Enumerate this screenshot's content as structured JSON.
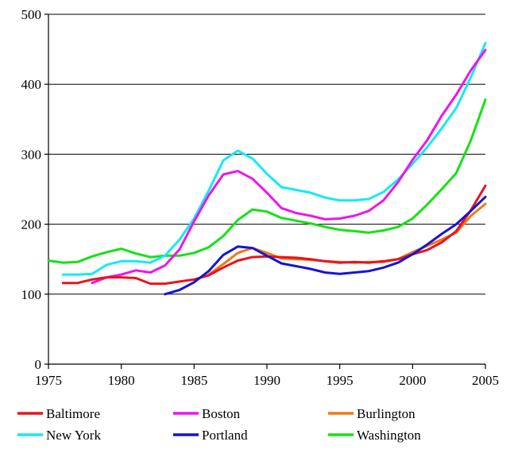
{
  "chart_data": {
    "type": "line",
    "title": "",
    "xlabel": "",
    "ylabel": "",
    "xlim": [
      1975,
      2005
    ],
    "ylim": [
      0,
      500
    ],
    "x_ticks": [
      "1975",
      "1980",
      "1985",
      "1990",
      "1995",
      "2000",
      "2005"
    ],
    "y_ticks": [
      "0",
      "100",
      "200",
      "300",
      "400",
      "500"
    ],
    "grid": "horizontal",
    "legend_position": "bottom",
    "series": [
      {
        "name": "Baltimore",
        "color": "#e8141c",
        "x": [
          1975,
          1976,
          1977,
          1978,
          1979,
          1980,
          1981,
          1982,
          1983,
          1984,
          1985,
          1986,
          1987,
          1988,
          1989,
          1990,
          1991,
          1992,
          1993,
          1994,
          1995,
          1996,
          1997,
          1998,
          1999,
          2000,
          2001,
          2002,
          2003,
          2004,
          2005
        ],
        "y": [
          null,
          116,
          116,
          121,
          124,
          124,
          123,
          115,
          115,
          118,
          121,
          127,
          138,
          148,
          153,
          154,
          153,
          152,
          150,
          147,
          145,
          146,
          145,
          147,
          150,
          157,
          163,
          174,
          190,
          220,
          255
        ]
      },
      {
        "name": "Boston",
        "color": "#ee14ee",
        "x": [
          1975,
          1976,
          1977,
          1978,
          1979,
          1980,
          1981,
          1982,
          1983,
          1984,
          1985,
          1986,
          1987,
          1988,
          1989,
          1990,
          1991,
          1992,
          1993,
          1994,
          1995,
          1996,
          1997,
          1998,
          1999,
          2000,
          2001,
          2002,
          2003,
          2004,
          2005
        ],
        "y": [
          null,
          null,
          null,
          116,
          124,
          128,
          134,
          131,
          141,
          164,
          204,
          241,
          271,
          276,
          265,
          245,
          223,
          216,
          212,
          207,
          208,
          212,
          219,
          234,
          260,
          292,
          320,
          355,
          385,
          420,
          449
        ]
      },
      {
        "name": "Burlington",
        "color": "#f07818",
        "x": [
          1975,
          1976,
          1977,
          1978,
          1979,
          1980,
          1981,
          1982,
          1983,
          1984,
          1985,
          1986,
          1987,
          1988,
          1989,
          1990,
          1991,
          1992,
          1993,
          1994,
          1995,
          1996,
          1997,
          1998,
          1999,
          2000,
          2001,
          2002,
          2003,
          2004,
          2005
        ],
        "y": [
          null,
          null,
          null,
          null,
          null,
          null,
          null,
          null,
          null,
          null,
          null,
          128,
          143,
          159,
          166,
          159,
          151,
          150,
          149,
          147,
          146,
          145,
          146,
          146,
          150,
          160,
          169,
          178,
          188,
          212,
          229
        ]
      },
      {
        "name": "New York",
        "color": "#14eaf4",
        "x": [
          1975,
          1976,
          1977,
          1978,
          1979,
          1980,
          1981,
          1982,
          1983,
          1984,
          1985,
          1986,
          1987,
          1988,
          1989,
          1990,
          1991,
          1992,
          1993,
          1994,
          1995,
          1996,
          1997,
          1998,
          1999,
          2000,
          2001,
          2002,
          2003,
          2004,
          2005
        ],
        "y": [
          null,
          128,
          128,
          129,
          142,
          147,
          147,
          145,
          155,
          178,
          208,
          248,
          291,
          305,
          294,
          272,
          253,
          249,
          245,
          238,
          234,
          234,
          236,
          246,
          264,
          286,
          310,
          337,
          366,
          410,
          459
        ]
      },
      {
        "name": "Portland",
        "color": "#1414d8",
        "x": [
          1975,
          1976,
          1977,
          1978,
          1979,
          1980,
          1981,
          1982,
          1983,
          1984,
          1985,
          1986,
          1987,
          1988,
          1989,
          1990,
          1991,
          1992,
          1993,
          1994,
          1995,
          1996,
          1997,
          1998,
          1999,
          2000,
          2001,
          2002,
          2003,
          2004,
          2005
        ],
        "y": [
          null,
          null,
          null,
          null,
          null,
          null,
          null,
          null,
          100,
          106,
          117,
          133,
          156,
          168,
          166,
          155,
          144,
          140,
          136,
          131,
          129,
          131,
          133,
          138,
          145,
          157,
          171,
          186,
          200,
          219,
          239
        ]
      },
      {
        "name": "Washington",
        "color": "#14e214",
        "x": [
          1975,
          1976,
          1977,
          1978,
          1979,
          1980,
          1981,
          1982,
          1983,
          1984,
          1985,
          1986,
          1987,
          1988,
          1989,
          1990,
          1991,
          1992,
          1993,
          1994,
          1995,
          1996,
          1997,
          1998,
          1999,
          2000,
          2001,
          2002,
          2003,
          2004,
          2005
        ],
        "y": [
          148,
          145,
          146,
          154,
          160,
          165,
          158,
          153,
          155,
          155,
          159,
          167,
          183,
          206,
          221,
          218,
          209,
          205,
          201,
          196,
          192,
          190,
          188,
          191,
          196,
          208,
          228,
          250,
          273,
          320,
          378
        ]
      }
    ]
  }
}
